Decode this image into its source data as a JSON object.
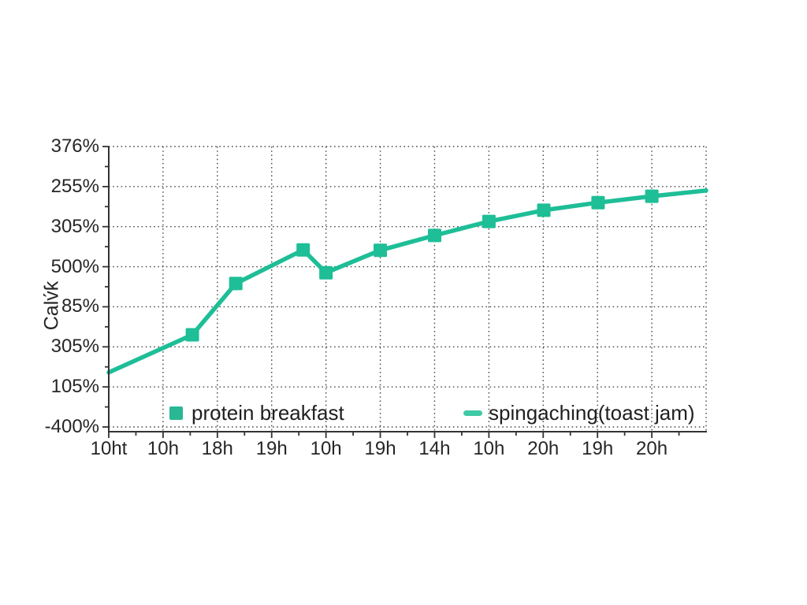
{
  "chart_data": {
    "type": "line",
    "title": "",
    "xlabel": "",
    "ylabel": "Calv́ƙ",
    "x_tick_labels": [
      "10ht",
      "10h",
      "18h",
      "19h",
      "10h",
      "19h",
      "14h",
      "10h",
      "20h",
      "19h",
      "20h"
    ],
    "y_tick_labels": [
      "376%",
      "255%",
      "305%",
      "500%",
      "85%",
      "305%",
      "105%",
      "-400%"
    ],
    "grid": true,
    "legend_position": "inside-bottom",
    "colors": {
      "line": "#1ebe97",
      "marker": "#1ebe97",
      "legend_square": "#29b794",
      "legend_dash": "#3fc9a6",
      "grid": "#4a4a4a",
      "axis": "#333333",
      "text": "#262626",
      "background": "#ffffff"
    },
    "series": [
      {
        "name": "protein breakfast",
        "marker": "square",
        "points": [
          {
            "x": 0.0,
            "y": 5.64,
            "marker": false
          },
          {
            "x": 1.54,
            "y": 4.7,
            "marker": true
          },
          {
            "x": 2.34,
            "y": 3.42,
            "marker": true
          },
          {
            "x": 3.58,
            "y": 2.58,
            "marker": true
          },
          {
            "x": 4.0,
            "y": 3.15,
            "marker": true
          },
          {
            "x": 5.0,
            "y": 2.59,
            "marker": true
          },
          {
            "x": 6.0,
            "y": 2.22,
            "marker": true
          },
          {
            "x": 7.0,
            "y": 1.87,
            "marker": true
          },
          {
            "x": 8.01,
            "y": 1.59,
            "marker": true
          },
          {
            "x": 9.01,
            "y": 1.4,
            "marker": true
          },
          {
            "x": 10.0,
            "y": 1.24,
            "marker": true
          },
          {
            "x": 11.0,
            "y": 1.1,
            "marker": false
          }
        ]
      }
    ],
    "legend": [
      {
        "label": "protein breakfast",
        "swatch": "square"
      },
      {
        "label": "spingaching(toast jam)",
        "swatch": "dash"
      }
    ]
  }
}
